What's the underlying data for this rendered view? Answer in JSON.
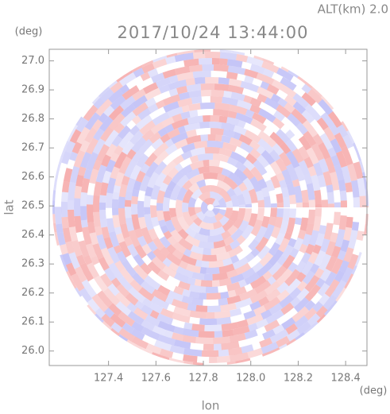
{
  "chart_data": {
    "type": "ppi",
    "title": "2017/10/24 13:44:00",
    "annotation": "ALT(km) 2.0",
    "x_label": "lon",
    "y_label": "lat",
    "x_unit": "(deg)",
    "y_unit": "(deg)",
    "xlim": [
      127.15,
      128.49
    ],
    "ylim": [
      25.95,
      27.04
    ],
    "xticks": [
      127.4,
      127.6,
      127.8,
      {
        "value": 128,
        "label": "128.0"
      },
      128.2,
      128.4
    ],
    "yticks": [
      {
        "value": 26,
        "label": "26.0"
      },
      26.1,
      26.2,
      26.3,
      26.4,
      26.5,
      26.6,
      26.7,
      26.8,
      26.9,
      {
        "value": 27,
        "label": "27.0"
      }
    ]
  }
}
